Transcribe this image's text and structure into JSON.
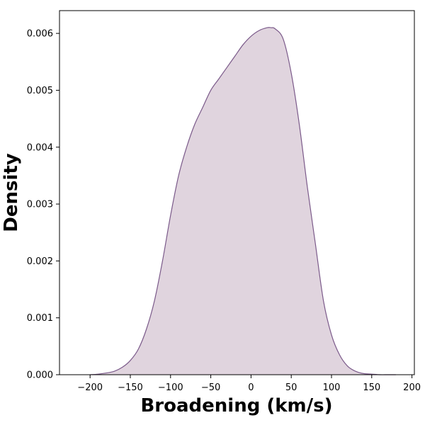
{
  "chart_data": {
    "type": "area",
    "title": "",
    "xlabel": "Broadening (km/s)",
    "ylabel": "Density",
    "xlim": [
      -238,
      203
    ],
    "ylim": [
      0,
      0.0064
    ],
    "xticks": [
      -200,
      -150,
      -100,
      -50,
      0,
      50,
      100,
      150,
      200
    ],
    "xtick_labels": [
      "−200",
      "−150",
      "−100",
      "−50",
      "0",
      "50",
      "100",
      "150",
      "200"
    ],
    "yticks": [
      0,
      0.001,
      0.002,
      0.003,
      0.004,
      0.005,
      0.006
    ],
    "ytick_labels": [
      "0.000",
      "0.001",
      "0.002",
      "0.003",
      "0.004",
      "0.005",
      "0.006"
    ],
    "grid": false,
    "legend": "none",
    "series": [
      {
        "color": "#7b5a8a",
        "fill": "#e0d4de",
        "x": [
          -200,
          -190,
          -180,
          -170,
          -160,
          -150,
          -140,
          -130,
          -120,
          -110,
          -100,
          -90,
          -80,
          -70,
          -60,
          -50,
          -40,
          -30,
          -20,
          -10,
          0,
          10,
          20,
          25,
          30,
          40,
          50,
          60,
          70,
          80,
          90,
          100,
          110,
          120,
          130,
          140,
          150,
          160,
          170,
          180
        ],
        "y": [
          0.0,
          1e-05,
          3e-05,
          6e-05,
          0.00013,
          0.00025,
          0.00045,
          0.0008,
          0.0013,
          0.002,
          0.0028,
          0.0035,
          0.004,
          0.0044,
          0.0047,
          0.005,
          0.0052,
          0.0054,
          0.0056,
          0.0058,
          0.00595,
          0.00605,
          0.0061,
          0.0061,
          0.00608,
          0.0059,
          0.0053,
          0.0044,
          0.0033,
          0.0023,
          0.0013,
          0.0007,
          0.00035,
          0.00015,
          6e-05,
          2e-05,
          1e-05,
          0.0,
          0.0,
          0.0
        ]
      }
    ]
  }
}
